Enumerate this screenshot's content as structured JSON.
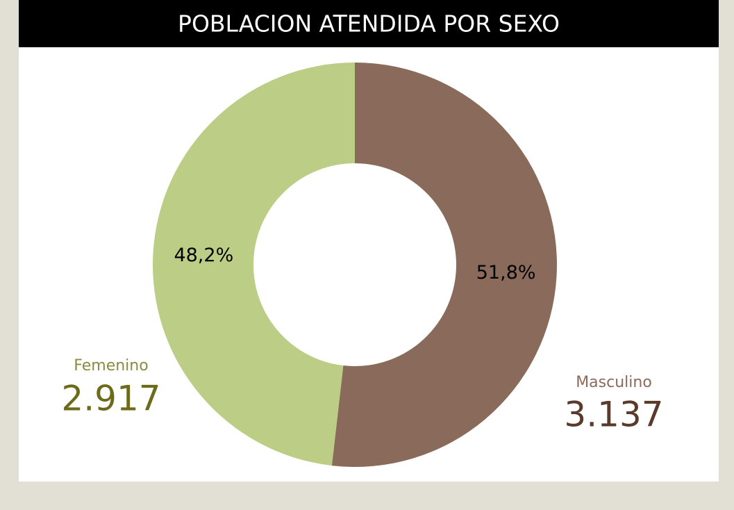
{
  "chart_data": {
    "type": "donut",
    "title": "POBLACION ATENDIDA POR SEXO",
    "categories": [
      "Masculino",
      "Femenino"
    ],
    "values": [
      3137,
      2917
    ],
    "value_labels": [
      "3.137",
      "2.917"
    ],
    "percentages": [
      51.8,
      48.2
    ],
    "percentage_labels": [
      "51,8%",
      "48,2%"
    ],
    "colors": [
      "#8a6a5a",
      "#bccd85"
    ]
  }
}
